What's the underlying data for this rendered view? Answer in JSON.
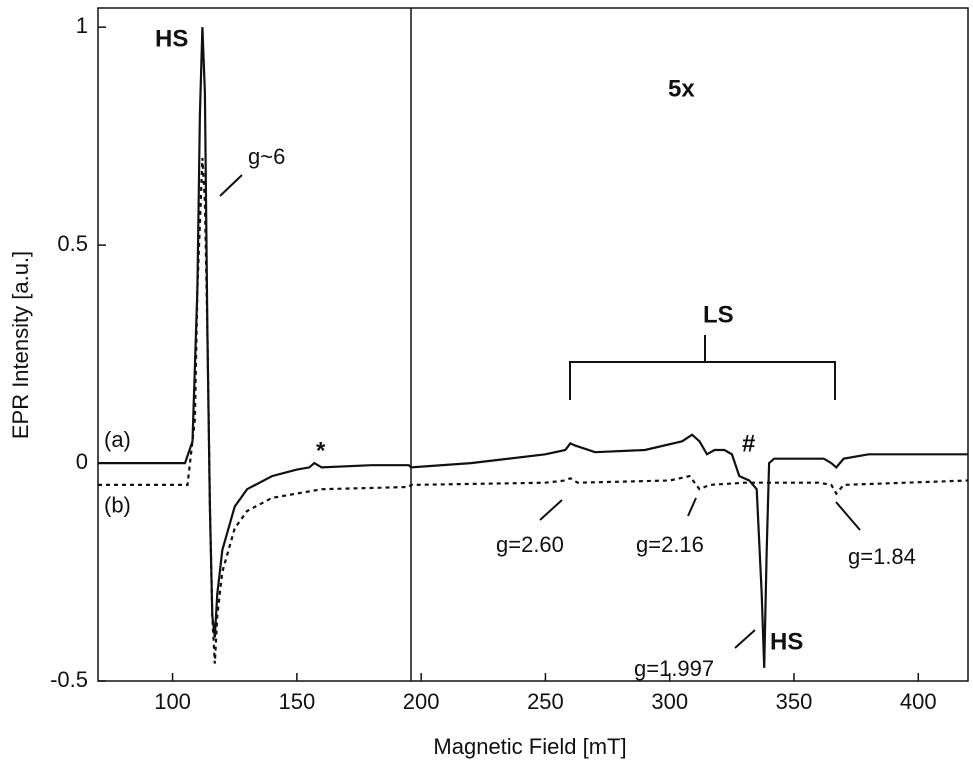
{
  "chart_data": {
    "type": "line",
    "xlabel": "Magnetic Field [mT]",
    "ylabel": "EPR Intensity [a.u.]",
    "xlim": [
      70,
      420
    ],
    "ylim": [
      -0.5,
      1.044
    ],
    "xticks": [
      100,
      150,
      200,
      250,
      300,
      350,
      400
    ],
    "yticks": [
      -0.5,
      0,
      0.5,
      1
    ],
    "series": [
      {
        "name": "(a)",
        "color": "#111111",
        "dash": false,
        "x": [
          70,
          105,
          108,
          110,
          111,
          112,
          113,
          114,
          115,
          116,
          117,
          118,
          120,
          125,
          130,
          140,
          150,
          155,
          157,
          160,
          180,
          195,
          196,
          220,
          250,
          258,
          260,
          262,
          270,
          290,
          305,
          309,
          312,
          315,
          318,
          322,
          325,
          328,
          332,
          335,
          337,
          338,
          339,
          340,
          342,
          350,
          362,
          365,
          367,
          370,
          380,
          400,
          420
        ],
        "values": [
          0,
          0,
          0.05,
          0.4,
          0.8,
          1.0,
          0.85,
          0.3,
          -0.1,
          -0.35,
          -0.4,
          -0.3,
          -0.2,
          -0.1,
          -0.06,
          -0.03,
          -0.015,
          -0.01,
          0.0,
          -0.01,
          -0.005,
          -0.005,
          -0.01,
          0.0,
          0.02,
          0.03,
          0.045,
          0.04,
          0.025,
          0.03,
          0.05,
          0.065,
          0.05,
          0.02,
          0.03,
          0.03,
          0.02,
          -0.03,
          -0.04,
          -0.06,
          -0.3,
          -0.47,
          -0.2,
          0.0,
          0.01,
          0.01,
          0.01,
          0.0,
          -0.01,
          0.01,
          0.02,
          0.02,
          0.02
        ]
      },
      {
        "name": "(b)",
        "color": "#111111",
        "dash": true,
        "x": [
          70,
          106,
          109,
          110,
          112,
          113,
          114,
          115,
          116,
          117,
          118,
          120,
          125,
          130,
          140,
          160,
          195,
          196,
          250,
          258,
          260,
          263,
          300,
          308,
          312,
          316,
          330,
          360,
          365,
          367,
          370,
          420
        ],
        "values": [
          -0.05,
          -0.05,
          0.1,
          0.4,
          0.7,
          0.6,
          0.3,
          -0.1,
          -0.35,
          -0.46,
          -0.35,
          -0.25,
          -0.15,
          -0.11,
          -0.08,
          -0.06,
          -0.055,
          -0.05,
          -0.045,
          -0.04,
          -0.035,
          -0.045,
          -0.04,
          -0.03,
          -0.06,
          -0.05,
          -0.045,
          -0.045,
          -0.05,
          -0.07,
          -0.05,
          -0.04
        ]
      }
    ],
    "annotations": [
      "HS",
      "g~6",
      "*",
      "5x",
      "LS",
      "#",
      "g=2.60",
      "g=2.16",
      "g=1.84",
      "g=1.997",
      "HS"
    ]
  }
}
